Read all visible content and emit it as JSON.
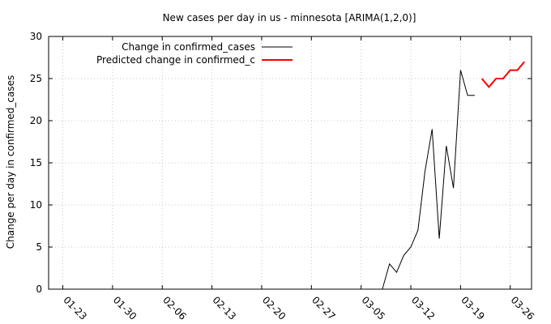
{
  "chart_data": {
    "type": "line",
    "title": "New cases per day in us - minnesota [ARIMA(1,2,0)]",
    "xlabel": "",
    "ylabel": "Change per day in confirmed_cases",
    "x_range": [
      "2020-01-21",
      "2020-03-29"
    ],
    "ylim": [
      0,
      30
    ],
    "yticks": [
      0,
      5,
      10,
      15,
      20,
      25,
      30
    ],
    "xticks": [
      {
        "date": "2020-01-23",
        "label": "01-23"
      },
      {
        "date": "2020-01-30",
        "label": "01-30"
      },
      {
        "date": "2020-02-06",
        "label": "02-06"
      },
      {
        "date": "2020-02-13",
        "label": "02-13"
      },
      {
        "date": "2020-02-20",
        "label": "02-20"
      },
      {
        "date": "2020-02-27",
        "label": "02-27"
      },
      {
        "date": "2020-03-05",
        "label": "03-05"
      },
      {
        "date": "2020-03-12",
        "label": "03-12"
      },
      {
        "date": "2020-03-19",
        "label": "03-19"
      },
      {
        "date": "2020-03-26",
        "label": "03-26"
      }
    ],
    "grid": true,
    "legend_position": "top-left",
    "series": [
      {
        "name": "Change in confirmed_cases",
        "color": "#000000",
        "x": [
          "2020-03-08",
          "2020-03-09",
          "2020-03-10",
          "2020-03-11",
          "2020-03-12",
          "2020-03-13",
          "2020-03-14",
          "2020-03-15",
          "2020-03-16",
          "2020-03-17",
          "2020-03-18",
          "2020-03-19",
          "2020-03-20",
          "2020-03-21"
        ],
        "y": [
          0,
          3,
          2,
          4,
          5,
          7,
          14,
          19,
          6,
          17,
          12,
          26,
          23,
          23
        ]
      },
      {
        "name": "Predicted change in confirmed_c",
        "color": "#ff0000",
        "x": [
          "2020-03-22",
          "2020-03-23",
          "2020-03-24",
          "2020-03-25",
          "2020-03-26",
          "2020-03-27",
          "2020-03-28"
        ],
        "y": [
          25,
          24,
          25,
          25,
          26,
          26,
          27
        ]
      }
    ]
  }
}
